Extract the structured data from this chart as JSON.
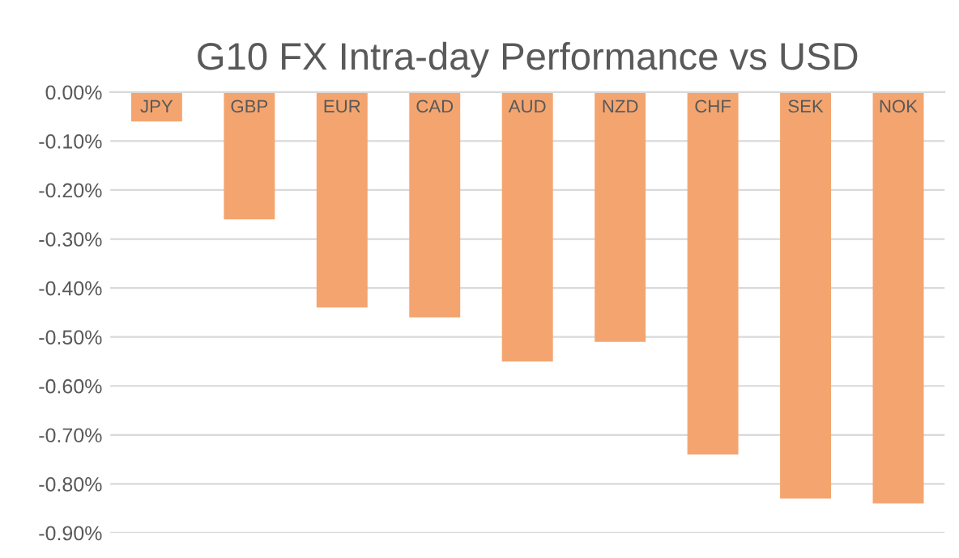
{
  "chart_data": {
    "type": "bar",
    "title": "G10 FX Intra-day Performance vs USD",
    "categories": [
      "JPY",
      "GBP",
      "EUR",
      "CAD",
      "AUD",
      "NZD",
      "CHF",
      "SEK",
      "NOK"
    ],
    "values": [
      -0.06,
      -0.26,
      -0.44,
      -0.46,
      -0.55,
      -0.51,
      -0.74,
      -0.83,
      -0.84
    ],
    "color": "#f4a56f",
    "ylim": [
      -0.9,
      0.0
    ],
    "yticks": [
      {
        "value": 0.0,
        "label": "0.00%"
      },
      {
        "value": -0.1,
        "label": "-0.10%"
      },
      {
        "value": -0.2,
        "label": "-0.20%"
      },
      {
        "value": -0.3,
        "label": "-0.30%"
      },
      {
        "value": -0.4,
        "label": "-0.40%"
      },
      {
        "value": -0.5,
        "label": "-0.50%"
      },
      {
        "value": -0.6,
        "label": "-0.60%"
      },
      {
        "value": -0.7,
        "label": "-0.70%"
      },
      {
        "value": -0.8,
        "label": "-0.80%"
      },
      {
        "value": -0.9,
        "label": "-0.90%"
      }
    ],
    "grid": "y"
  }
}
